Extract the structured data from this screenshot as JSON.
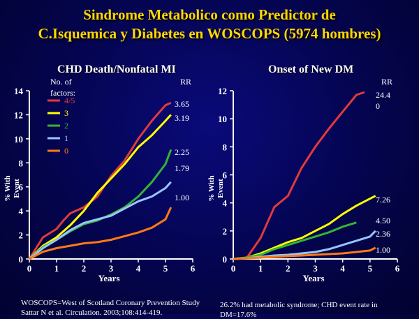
{
  "slide": {
    "title_line1": "Sindrome Metabolico como Predictor de",
    "title_line2": "C.Isquemica y Diabetes en WOSCOPS (5974 hombres)",
    "footer_left_1": "WOSCOPS=West of Scotland Coronary Prevention Study",
    "footer_left_2": "Sattar N et al. Circulation. 2003;108:414-419.",
    "footer_right_1": "26.2% had metabolic syndrome; CHD event rate in",
    "footer_right_2": "DM=17.6%"
  },
  "colors": {
    "title": "#ffd700",
    "background": "#04044e",
    "axis": "#ffffff",
    "series_4_5": "#e23a3a",
    "series_3": "#ffff00",
    "series_2": "#33b533",
    "series_1": "#9ac4ff",
    "series_0": "#ff7a12"
  },
  "chart_data": [
    {
      "type": "line",
      "title": "CHD Death/Nonfatal MI",
      "xlabel": "Years",
      "ylabel": "% With Event",
      "xlim": [
        0,
        6
      ],
      "ylim": [
        0,
        14
      ],
      "xticks": [
        0,
        1,
        2,
        3,
        4,
        5,
        6
      ],
      "yticks": [
        0,
        2,
        4,
        6,
        8,
        10,
        12,
        14
      ],
      "legend_title": "No. of factors:",
      "rr_header": "RR",
      "series": [
        {
          "name": "4/5",
          "rr": "3.65",
          "color_key": "series_4_5",
          "x": [
            0,
            0.5,
            1.0,
            1.25,
            1.5,
            2.0,
            2.5,
            3.0,
            3.5,
            4.0,
            4.5,
            5.0,
            5.2
          ],
          "y": [
            0,
            1.8,
            2.5,
            3.2,
            3.8,
            4.3,
            5.2,
            6.9,
            8.2,
            10.0,
            11.5,
            12.8,
            13.0
          ]
        },
        {
          "name": "3",
          "rr": "3.19",
          "color_key": "series_3",
          "x": [
            0,
            0.5,
            1.0,
            1.5,
            2.0,
            2.5,
            3.0,
            3.5,
            4.0,
            4.5,
            5.0,
            5.2
          ],
          "y": [
            0,
            1.1,
            1.8,
            2.8,
            4.0,
            5.5,
            6.7,
            7.9,
            9.3,
            10.3,
            11.5,
            12.0
          ]
        },
        {
          "name": "2",
          "rr": "2.25",
          "color_key": "series_2",
          "x": [
            0,
            0.5,
            1.0,
            1.5,
            2.0,
            2.5,
            3.0,
            3.5,
            4.0,
            4.5,
            5.0,
            5.2
          ],
          "y": [
            0,
            1.0,
            1.6,
            2.3,
            2.9,
            3.2,
            3.7,
            4.3,
            5.2,
            6.4,
            7.9,
            9.1
          ]
        },
        {
          "name": "1",
          "rr": "1.79",
          "color_key": "series_1",
          "x": [
            0,
            0.5,
            1.0,
            1.5,
            2.0,
            2.5,
            3.0,
            3.5,
            4.0,
            4.5,
            5.0,
            5.2
          ],
          "y": [
            0,
            0.9,
            1.6,
            2.4,
            3.0,
            3.3,
            3.6,
            4.2,
            4.8,
            5.2,
            5.9,
            6.4
          ]
        },
        {
          "name": "0",
          "rr": "1.00",
          "color_key": "series_0",
          "x": [
            0,
            0.5,
            1.0,
            1.5,
            2.0,
            2.5,
            3.0,
            3.5,
            4.0,
            4.5,
            5.0,
            5.2
          ],
          "y": [
            0,
            0.6,
            0.9,
            1.1,
            1.3,
            1.4,
            1.6,
            1.9,
            2.2,
            2.6,
            3.3,
            4.3
          ]
        }
      ]
    },
    {
      "type": "line",
      "title": "Onset of New DM",
      "xlabel": "Years",
      "ylabel": "% With Event",
      "xlim": [
        0,
        6
      ],
      "ylim": [
        0,
        12
      ],
      "xticks": [
        0,
        1,
        2,
        3,
        4,
        5,
        6
      ],
      "yticks": [
        0,
        2,
        4,
        6,
        8,
        10,
        12
      ],
      "rr_header": "RR",
      "series": [
        {
          "name": "4/5",
          "rr": "24.4\n0",
          "color_key": "series_4_5",
          "x": [
            0,
            0.5,
            1.0,
            1.5,
            2.0,
            2.5,
            3.0,
            3.5,
            4.0,
            4.5,
            4.8
          ],
          "y": [
            0,
            0.1,
            1.5,
            3.7,
            4.5,
            6.5,
            8.0,
            9.3,
            10.5,
            11.7,
            11.9
          ]
        },
        {
          "name": "3",
          "rr": "7.26",
          "color_key": "series_3",
          "x": [
            0,
            0.5,
            1.0,
            1.5,
            2.0,
            2.5,
            3.0,
            3.5,
            4.0,
            4.5,
            5.2
          ],
          "y": [
            0,
            0.1,
            0.4,
            0.8,
            1.2,
            1.5,
            2.0,
            2.5,
            3.2,
            3.8,
            4.5
          ]
        },
        {
          "name": "2",
          "rr": "4.50",
          "color_key": "series_2",
          "x": [
            0,
            0.5,
            1.0,
            1.5,
            2.0,
            2.5,
            3.0,
            3.5,
            4.0,
            4.5
          ],
          "y": [
            0,
            0.1,
            0.3,
            0.7,
            1.0,
            1.3,
            1.6,
            1.9,
            2.3,
            2.6
          ]
        },
        {
          "name": "1",
          "rr": "2.36",
          "color_key": "series_1",
          "x": [
            0,
            0.5,
            1.0,
            1.5,
            2.0,
            2.5,
            3.0,
            3.5,
            4.0,
            4.5,
            5.0,
            5.2
          ],
          "y": [
            0,
            0.05,
            0.15,
            0.25,
            0.3,
            0.4,
            0.5,
            0.7,
            1.0,
            1.3,
            1.6,
            2.0
          ]
        },
        {
          "name": "0",
          "rr": "1.00",
          "color_key": "series_0",
          "x": [
            0,
            0.5,
            1.0,
            1.5,
            2.0,
            2.5,
            3.0,
            3.5,
            4.0,
            4.5,
            5.0,
            5.2
          ],
          "y": [
            0,
            0.05,
            0.1,
            0.15,
            0.2,
            0.25,
            0.3,
            0.35,
            0.4,
            0.5,
            0.6,
            0.8
          ]
        }
      ]
    }
  ]
}
